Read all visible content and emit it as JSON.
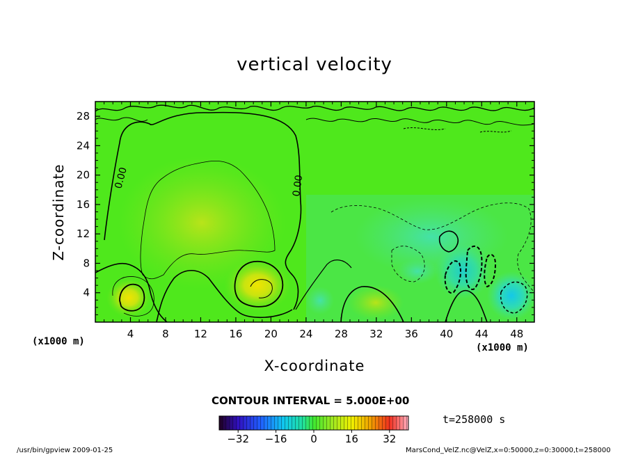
{
  "chart_data": {
    "type": "heatmap",
    "title": "vertical velocity",
    "xlabel": "X-coordinate",
    "ylabel": "Z-coordinate",
    "x_unit_label": "(x1000 m)",
    "xlim": [
      0,
      50
    ],
    "ylim": [
      0,
      30
    ],
    "x_ticks": [
      "4",
      "8",
      "12",
      "16",
      "20",
      "24",
      "28",
      "32",
      "36",
      "40",
      "44",
      "48"
    ],
    "y_ticks": [
      "4",
      "8",
      "12",
      "16",
      "20",
      "24",
      "28"
    ],
    "contour_labels": [
      "0.00",
      "0.00"
    ],
    "contour_interval_text": "CONTOUR INTERVAL = 5.000E+00",
    "colorbar": {
      "range": [
        -40,
        40
      ],
      "tick_labels": [
        "−32",
        "−16",
        "0",
        "16",
        "32"
      ]
    },
    "features": [
      {
        "x": 19,
        "z": 4,
        "value": 20
      },
      {
        "x": 3.8,
        "z": 3,
        "value": 15
      },
      {
        "x": 15,
        "z": 13,
        "value": 6
      },
      {
        "x": 47.5,
        "z": 2,
        "value": -16
      },
      {
        "x": 41,
        "z": 6,
        "value": -12
      },
      {
        "x": 26,
        "z": 3,
        "value": -6
      }
    ],
    "colors": {
      "background_field": "#4fe81c",
      "positive_max": "#f0f000",
      "negative_max": "#00c8e0"
    }
  },
  "time_label": "t=258000 s",
  "footer_left": "/usr/bin/gpview  2009-01-25",
  "footer_right": "MarsCond_VelZ.nc@VelZ,x=0:50000,z=0:30000,t=258000"
}
